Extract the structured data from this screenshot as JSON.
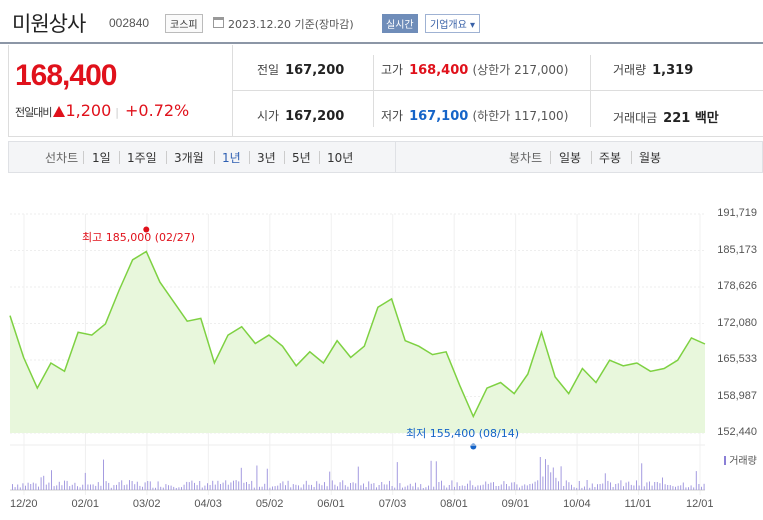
{
  "header": {
    "company": "미원상사",
    "code": "002840",
    "market": "코스피",
    "date": "2023.12.20 기준(장마감)",
    "realtime": "실시간",
    "overview": "기업개요 ▾"
  },
  "price": {
    "current": "168,400",
    "diff_label": "전일대비",
    "diff": "1,200",
    "pct": "+0.72%",
    "up_color": "#e0111b"
  },
  "info": {
    "prev_close_label": "전일",
    "prev_close": "167,200",
    "high_label": "고가",
    "high": "168,400",
    "upper_limit": "(상한가 217,000)",
    "volume_label": "거래량",
    "volume": "1,319",
    "open_label": "시가",
    "open": "167,200",
    "low_label": "저가",
    "low": "167,100",
    "lower_limit": "(하한가 117,100)",
    "turnover_label": "거래대금",
    "turnover": "221 백만"
  },
  "periods": {
    "label": "선차트",
    "items": [
      "1일",
      "1주일",
      "3개월",
      "1년",
      "3년",
      "5년",
      "10년"
    ],
    "active": "1년"
  },
  "candle": {
    "label": "봉차트",
    "items": [
      "일봉",
      "주봉",
      "월봉"
    ]
  },
  "chart_data": {
    "type": "area",
    "title": "",
    "y_ticks": [
      "191,719",
      "185,173",
      "178,626",
      "172,080",
      "165,533",
      "158,987",
      "152,440"
    ],
    "ylim": [
      152440,
      191719
    ],
    "x_ticks": [
      "12/20",
      "02/01",
      "03/02",
      "04/03",
      "05/02",
      "06/01",
      "07/03",
      "08/01",
      "09/01",
      "10/04",
      "11/01",
      "12/01"
    ],
    "x": [
      "12/20",
      "12/27",
      "01/03",
      "01/10",
      "01/17",
      "01/24",
      "02/01",
      "02/08",
      "02/15",
      "02/22",
      "02/27",
      "03/02",
      "03/09",
      "03/16",
      "03/23",
      "03/30",
      "04/03",
      "04/10",
      "04/17",
      "04/24",
      "05/02",
      "05/09",
      "05/16",
      "05/23",
      "06/01",
      "06/08",
      "06/15",
      "06/22",
      "07/03",
      "07/10",
      "07/17",
      "07/24",
      "08/01",
      "08/07",
      "08/14",
      "08/21",
      "09/01",
      "09/08",
      "09/15",
      "09/22",
      "10/04",
      "10/11",
      "10/18",
      "10/25",
      "11/01",
      "11/08",
      "11/15",
      "11/22",
      "12/01",
      "12/08",
      "12/15",
      "12/20"
    ],
    "y": [
      173500,
      166000,
      160500,
      165000,
      163500,
      170500,
      170000,
      172000,
      178000,
      183500,
      185000,
      179500,
      176000,
      172500,
      173000,
      165000,
      170000,
      171500,
      168500,
      170000,
      168000,
      164500,
      167000,
      165000,
      169000,
      166000,
      168000,
      175000,
      176500,
      169000,
      168000,
      166500,
      167000,
      161000,
      155400,
      160500,
      161500,
      159500,
      163000,
      170500,
      162500,
      159500,
      164000,
      161500,
      165500,
      164500,
      165000,
      163500,
      164000,
      165500,
      169500,
      168400
    ],
    "high_annotation": "최고 185,000 (02/27)",
    "low_annotation": "최저 155,400 (08/14)",
    "volume_label": "거래량",
    "line_color": "#7ed142",
    "fill_color": "#e8f7dc"
  }
}
